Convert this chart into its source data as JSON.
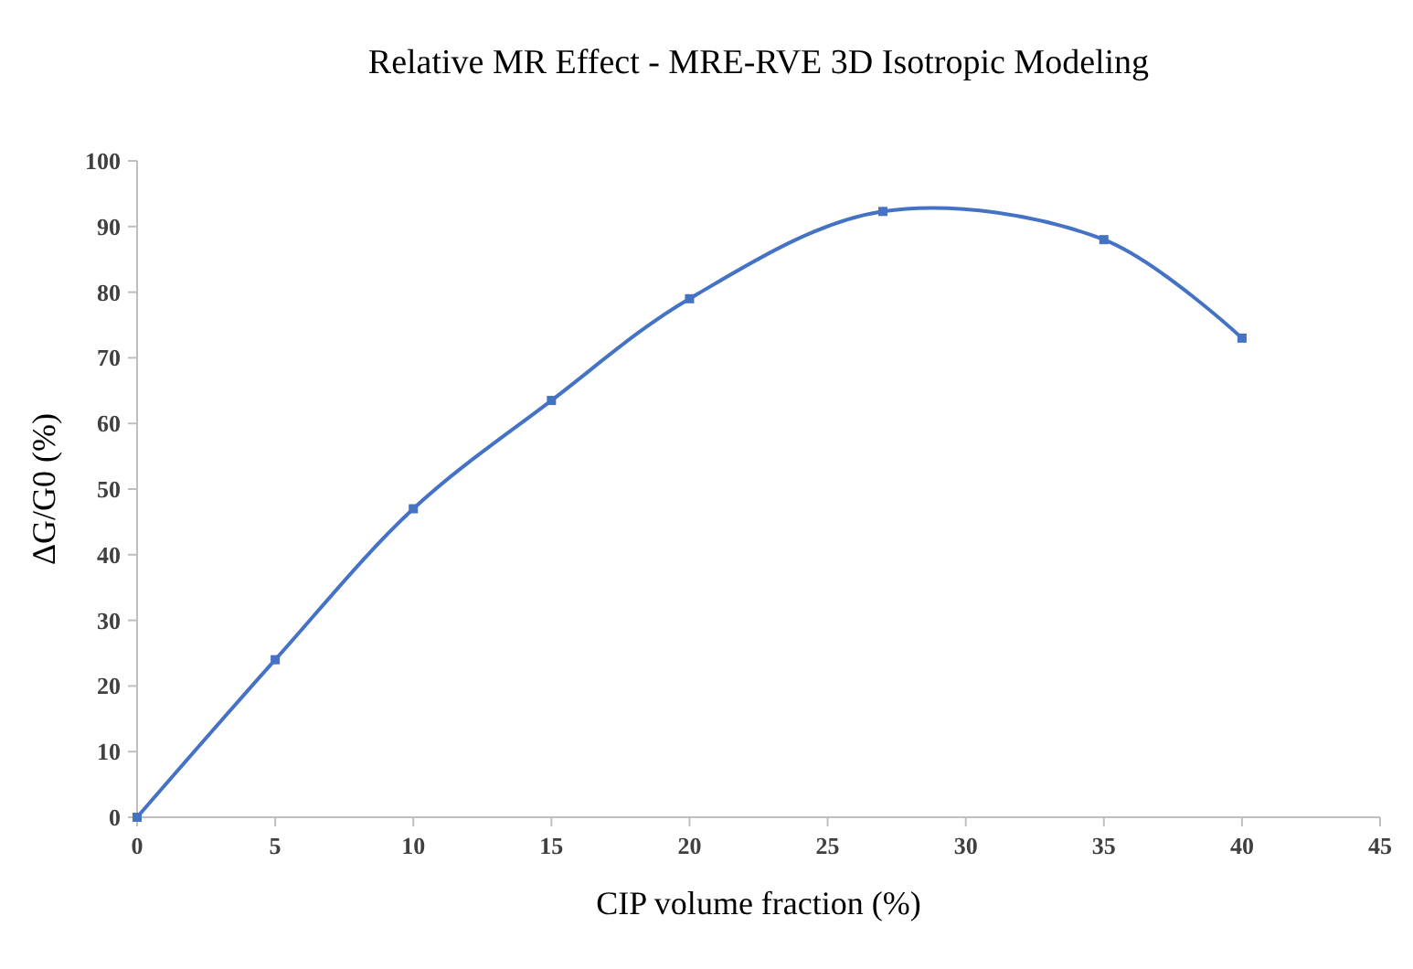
{
  "chart_data": {
    "type": "line",
    "title": "Relative MR Effect - MRE-RVE 3D Isotropic Modeling",
    "xlabel": "CIP volume fraction (%)",
    "ylabel": "ΔG/G0 (%)",
    "x": [
      0,
      5,
      10,
      15,
      20,
      27,
      35,
      40
    ],
    "series": [
      {
        "color": "#4472c4",
        "values": [
          0,
          24,
          47,
          63.5,
          79,
          92.3,
          88,
          73
        ]
      }
    ],
    "xlim": [
      0,
      45
    ],
    "xticks": [
      0,
      5,
      10,
      15,
      20,
      25,
      30,
      35,
      40,
      45
    ],
    "ylim": [
      0,
      100
    ],
    "yticks": [
      0,
      10,
      20,
      30,
      40,
      50,
      60,
      70,
      80,
      90,
      100
    ],
    "grid": false,
    "marker": "square",
    "line_style": "solid"
  }
}
